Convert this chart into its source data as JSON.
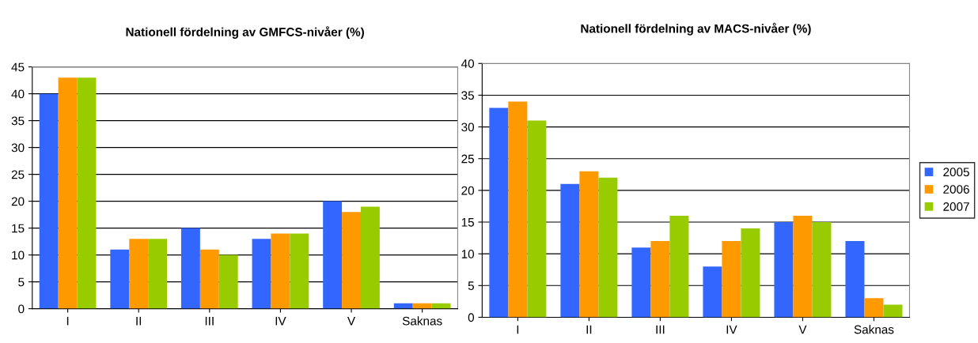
{
  "chart_data": [
    {
      "type": "bar",
      "title": "Nationell fördelning av GMFCS-nivåer (%)",
      "categories": [
        "I",
        "II",
        "III",
        "IV",
        "V",
        "Saknas"
      ],
      "series": [
        {
          "color": "#3366ff",
          "values": [
            40,
            11,
            15,
            13,
            20,
            1
          ]
        },
        {
          "color": "#ff9900",
          "values": [
            43,
            13,
            11,
            14,
            18,
            1
          ]
        },
        {
          "color": "#99cc00",
          "values": [
            43,
            13,
            10,
            14,
            19,
            1
          ]
        }
      ],
      "ylim": [
        0,
        45
      ],
      "yticks": [
        0,
        5,
        10,
        15,
        20,
        25,
        30,
        35,
        40,
        45
      ],
      "grid": "y",
      "legend": false
    },
    {
      "type": "bar",
      "title": "Nationell fördelning av MACS-nivåer (%)",
      "categories": [
        "I",
        "II",
        "III",
        "IV",
        "V",
        "Saknas"
      ],
      "series": [
        {
          "name": "2005",
          "color": "#3366ff",
          "values": [
            33,
            21,
            11,
            8,
            15,
            12
          ]
        },
        {
          "name": "2006",
          "color": "#ff9900",
          "values": [
            34,
            23,
            12,
            12,
            16,
            3
          ]
        },
        {
          "name": "2007",
          "color": "#99cc00",
          "values": [
            31,
            22,
            16,
            14,
            15,
            2
          ]
        }
      ],
      "ylim": [
        0,
        40
      ],
      "yticks": [
        0,
        5,
        10,
        15,
        20,
        25,
        30,
        35,
        40
      ],
      "grid": "y",
      "legend": "right"
    }
  ]
}
